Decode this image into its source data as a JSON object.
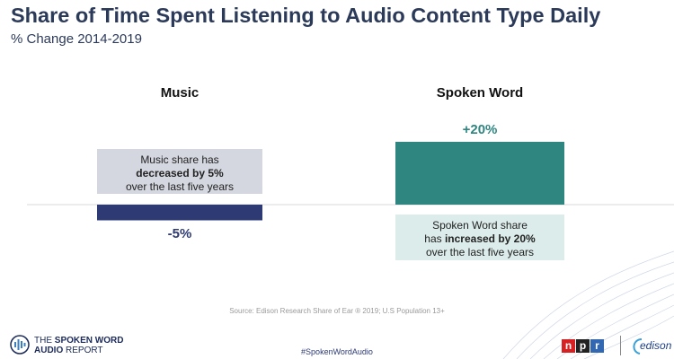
{
  "header": {
    "title": "Share of Time Spent Listening to Audio Content Type Daily",
    "subtitle": "% Change 2014-2019"
  },
  "chart_data": {
    "type": "bar",
    "categories": [
      "Music",
      "Spoken Word"
    ],
    "values": [
      -5,
      20
    ],
    "value_labels": [
      "-5%",
      "+20%"
    ],
    "ylim": [
      -5,
      20
    ],
    "grid": false,
    "colors": [
      "#2d3a73",
      "#2f8580"
    ],
    "label_colors": [
      "#2d3a73",
      "#2f8580"
    ],
    "annotations": [
      {
        "category": "Music",
        "line1": "Music share has",
        "line2_bold": "decreased by 5%",
        "line3": "over the last five years",
        "background": "#d4d6e0"
      },
      {
        "category": "Spoken Word",
        "line1": "Spoken Word share",
        "line2_prefix": "has ",
        "line2_bold": "increased by 20%",
        "line3": "over the last five years",
        "background": "#dcecea"
      }
    ]
  },
  "footer": {
    "source": "Source: Edison Research Share of Ear ® 2019; U.S Population 13+",
    "hashtag": "#SpokenWordAudio",
    "report_logo_line1_prefix": "THE ",
    "report_logo_line1_bold": "SPOKEN WORD",
    "report_logo_line2_bold": "AUDIO",
    "report_logo_line2_suffix": " REPORT",
    "npr_letters": [
      "n",
      "p",
      "r"
    ],
    "npr_colors": [
      "#d62021",
      "#222222",
      "#3267b1"
    ],
    "edison_text": "edison"
  }
}
